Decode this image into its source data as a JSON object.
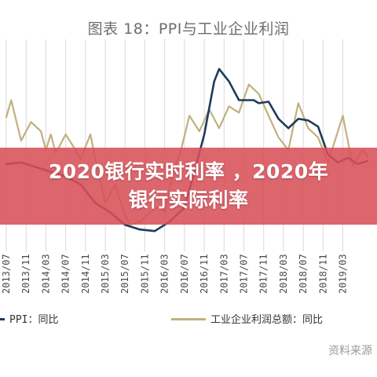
{
  "banner": {
    "text": "2020银行实时利率 ，2020年\n银行实际利率"
  },
  "source": "资料来源",
  "colors": {
    "ppi": "#1f3a5a",
    "profit": "#c2b07e",
    "banner": "#d85058",
    "grid": "#d9d9d9"
  },
  "chart_data": {
    "type": "line",
    "title": "图表 18：PPI与工业企业利润",
    "x_labels": [
      "2013/07",
      "2013/11",
      "2014/03",
      "2014/07",
      "2014/11",
      "2015/03",
      "2015/07",
      "2015/11",
      "2016/03",
      "2016/07",
      "2016/11",
      "2017/03",
      "2017/07",
      "2017/11",
      "2018/03",
      "2018/07",
      "2018/11",
      "2019/03"
    ],
    "x_start": "2013/07",
    "x_end": "2019/08",
    "legend_position": "bottom",
    "series": [
      {
        "name": "PPI：同比",
        "color": "#1f3a5a",
        "values": [
          [
            "2013/07",
            0.5
          ],
          [
            "2013/10",
            0.6
          ],
          [
            "2014/01",
            0.3
          ],
          [
            "2014/04",
            0.0
          ],
          [
            "2014/07",
            -0.3
          ],
          [
            "2014/10",
            -0.8
          ],
          [
            "2015/01",
            -2.0
          ],
          [
            "2015/04",
            -2.6
          ],
          [
            "2015/07",
            -3.4
          ],
          [
            "2015/10",
            -3.7
          ],
          [
            "2016/01",
            -3.8
          ],
          [
            "2016/04",
            -3.2
          ],
          [
            "2016/07",
            -2.3
          ],
          [
            "2016/09",
            0.0
          ],
          [
            "2016/11",
            2.4
          ],
          [
            "2017/01",
            5.8
          ],
          [
            "2017/02",
            6.6
          ],
          [
            "2017/04",
            5.8
          ],
          [
            "2017/06",
            4.6
          ],
          [
            "2017/09",
            4.6
          ],
          [
            "2017/10",
            4.4
          ],
          [
            "2017/12",
            4.5
          ],
          [
            "2018/02",
            3.4
          ],
          [
            "2018/04",
            2.8
          ],
          [
            "2018/06",
            3.4
          ],
          [
            "2018/08",
            3.3
          ],
          [
            "2018/10",
            2.9
          ],
          [
            "2018/12",
            1.1
          ],
          [
            "2019/02",
            0.6
          ],
          [
            "2019/04",
            0.9
          ],
          [
            "2019/06",
            0.5
          ],
          [
            "2019/08",
            0.7
          ]
        ]
      },
      {
        "name": "工业企业利润总额：同比",
        "color": "#c2b07e",
        "values": [
          [
            "2013/07",
            3.5
          ],
          [
            "2013/08",
            4.6
          ],
          [
            "2013/10",
            2.0
          ],
          [
            "2013/12",
            3.2
          ],
          [
            "2014/02",
            2.6
          ],
          [
            "2014/03",
            1.4
          ],
          [
            "2014/04",
            2.4
          ],
          [
            "2014/05",
            1.2
          ],
          [
            "2014/07",
            2.4
          ],
          [
            "2014/09",
            1.4
          ],
          [
            "2014/10",
            0.8
          ],
          [
            "2014/12",
            2.4
          ],
          [
            "2015/01",
            0.8
          ],
          [
            "2015/03",
            -2.0
          ],
          [
            "2015/05",
            -0.8
          ],
          [
            "2015/07",
            -2.8
          ],
          [
            "2015/08",
            -3.4
          ],
          [
            "2015/10",
            -3.2
          ],
          [
            "2015/12",
            -2.6
          ],
          [
            "2016/02",
            -2.2
          ],
          [
            "2016/03",
            -2.6
          ],
          [
            "2016/05",
            0.4
          ],
          [
            "2016/06",
            1.0
          ],
          [
            "2016/08",
            3.6
          ],
          [
            "2016/10",
            2.6
          ],
          [
            "2016/12",
            4.0
          ],
          [
            "2017/02",
            2.8
          ],
          [
            "2017/04",
            4.2
          ],
          [
            "2017/06",
            3.8
          ],
          [
            "2017/08",
            5.6
          ],
          [
            "2017/10",
            5.0
          ],
          [
            "2017/12",
            3.6
          ],
          [
            "2018/02",
            2.2
          ],
          [
            "2018/04",
            1.4
          ],
          [
            "2018/06",
            4.4
          ],
          [
            "2018/08",
            2.8
          ],
          [
            "2018/10",
            2.2
          ],
          [
            "2018/12",
            0.6
          ],
          [
            "2019/02",
            2.6
          ],
          [
            "2019/03",
            3.6
          ],
          [
            "2019/05",
            0.4
          ],
          [
            "2019/07",
            1.4
          ],
          [
            "2019/08",
            1.0
          ]
        ]
      }
    ]
  }
}
